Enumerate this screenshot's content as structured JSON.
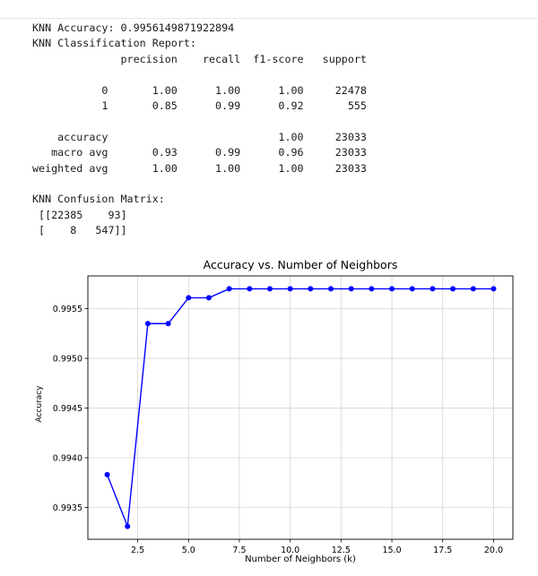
{
  "output_lines": [
    "KNN Accuracy: 0.9956149871922894",
    "KNN Classification Report:",
    "              precision    recall  f1-score   support",
    "",
    "           0       1.00      1.00      1.00     22478",
    "           1       0.85      0.99      0.92       555",
    "",
    "    accuracy                           1.00     23033",
    "   macro avg       0.93      0.99      0.96     23033",
    "weighted avg       1.00      1.00      1.00     23033",
    "",
    "KNN Confusion Matrix:",
    " [[22385    93]",
    " [    8   547]]"
  ],
  "chart_data": {
    "type": "line",
    "title": "Accuracy vs. Number of Neighbors",
    "xlabel": "Number of Neighbors (k)",
    "ylabel": "Accuracy",
    "x": [
      1,
      2,
      3,
      4,
      5,
      6,
      7,
      8,
      9,
      10,
      11,
      12,
      13,
      14,
      15,
      16,
      17,
      18,
      19,
      20
    ],
    "series": [
      {
        "values": [
          0.99383,
          0.99331,
          0.99535,
          0.99535,
          0.99561,
          0.99561,
          0.9957,
          0.9957,
          0.9957,
          0.9957,
          0.9957,
          0.9957,
          0.9957,
          0.9957,
          0.9957,
          0.9957,
          0.9957,
          0.9957,
          0.9957,
          0.9957
        ],
        "color": "#0000ff",
        "marker": "circle"
      }
    ],
    "xlim": [
      0.05,
      20.95
    ],
    "ylim": [
      0.99318,
      0.99583
    ],
    "xticks": [
      2.5,
      5.0,
      7.5,
      10.0,
      12.5,
      15.0,
      17.5,
      20.0
    ],
    "xtick_labels": [
      "2.5",
      "5.0",
      "7.5",
      "10.0",
      "12.5",
      "15.0",
      "17.5",
      "20.0"
    ],
    "yticks": [
      0.9935,
      0.994,
      0.9945,
      0.995,
      0.9955
    ],
    "ytick_labels": [
      "0.9935",
      "0.9940",
      "0.9945",
      "0.9950",
      "0.9955"
    ],
    "grid": true
  }
}
